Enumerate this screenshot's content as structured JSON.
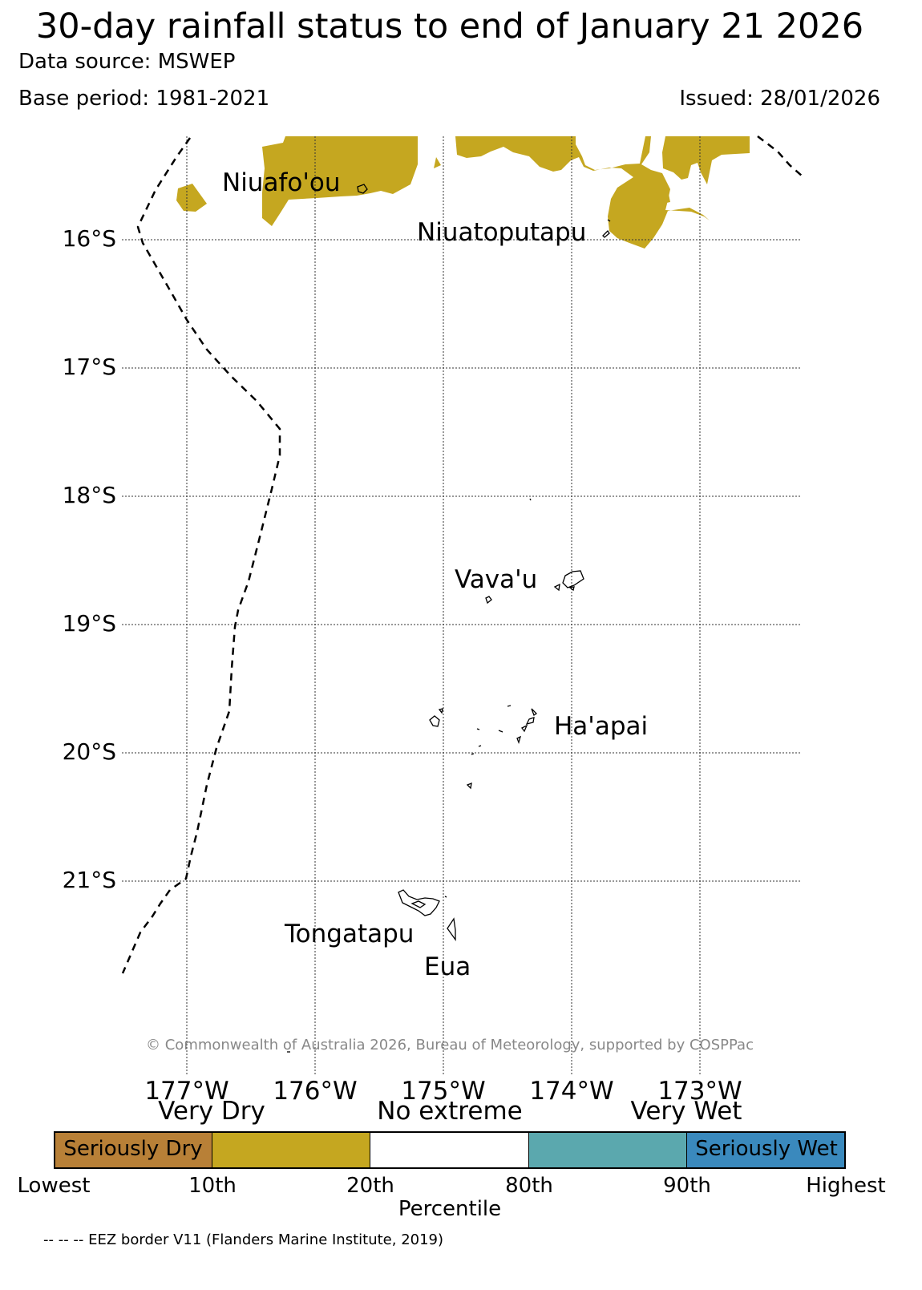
{
  "header": {
    "title": "30-day rainfall status to end of January 21 2026",
    "data_source": "Data source: MSWEP",
    "base_period": "Base period: 1981-2021",
    "issued": "Issued: 28/01/2026"
  },
  "map": {
    "lat_labels": [
      "16°S",
      "17°S",
      "18°S",
      "19°S",
      "20°S",
      "21°S"
    ],
    "lon_labels": [
      "177°W",
      "176°W",
      "175°W",
      "174°W",
      "173°W"
    ],
    "places": [
      "Niuafo'ou",
      "Niuatoputapu",
      "Vava'u",
      "Ha'apai",
      "Tongatapu",
      "Eua"
    ],
    "copyright": "© Commonwealth of Australia 2026, Bureau of Meteorology, supported by COSPPac",
    "dry_color": "#c5a720"
  },
  "legend": {
    "category_headers": [
      "Very Dry",
      "No extreme",
      "Very Wet"
    ],
    "segments": [
      {
        "label": "Seriously Dry",
        "color": "#b88037"
      },
      {
        "label": "",
        "color": "#c5a720"
      },
      {
        "label": "",
        "color": "#ffffff"
      },
      {
        "label": "",
        "color": "#5ba8ae"
      },
      {
        "label": "Seriously Wet",
        "color": "#3a89bd"
      }
    ],
    "ticks": [
      "Lowest",
      "10th",
      "20th",
      "80th",
      "90th",
      "Highest"
    ],
    "axis_label": "Percentile"
  },
  "footer": {
    "eez_note": "-- -- -- EEZ border V11 (Flanders Marine Institute, 2019)"
  }
}
